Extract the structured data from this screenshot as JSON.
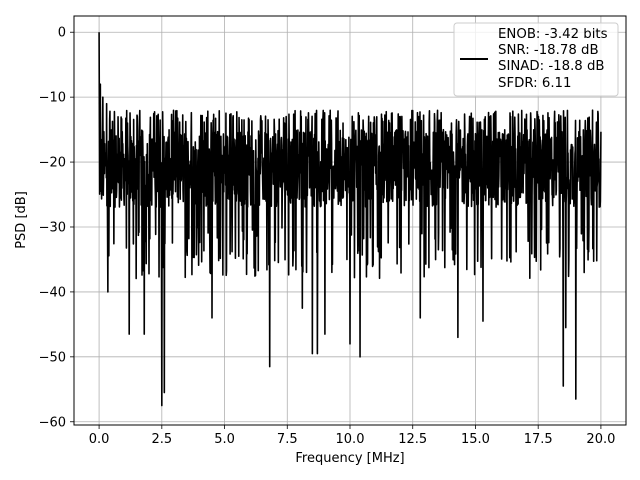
{
  "chart_data": {
    "type": "line",
    "title": "",
    "xlabel": "Frequency [MHz]",
    "ylabel": "PSD [dB]",
    "xlim": [
      -1.0,
      21.0
    ],
    "ylim": [
      -60.5,
      2.5
    ],
    "xticks": [
      0.0,
      2.5,
      5.0,
      7.5,
      10.0,
      12.5,
      15.0,
      17.5,
      20.0
    ],
    "xtick_labels": [
      "0.0",
      "2.5",
      "5.0",
      "7.5",
      "10.0",
      "12.5",
      "15.0",
      "17.5",
      "20.0"
    ],
    "yticks": [
      0,
      -10,
      -20,
      -30,
      -40,
      -50,
      -60
    ],
    "ytick_labels": [
      "0",
      "−10",
      "−20",
      "−30",
      "−40",
      "−50",
      "−60"
    ],
    "grid": true,
    "legend_position": "top-right",
    "series": [
      {
        "name": "ENOB: -3.42 bits\nSNR: -18.78 dB\nSINAD: -18.8 dB\nSFDR: 6.11",
        "legend_lines": [
          "ENOB: -3.42 bits",
          "SNR: -18.78 dB",
          "SINAD: -18.8 dB",
          "SFDR: 6.11"
        ],
        "color": "#000000",
        "baseline_db": -21,
        "peaks": [
          {
            "x": 0.0,
            "y": 0
          },
          {
            "x": 0.05,
            "y": -8
          },
          {
            "x": 0.15,
            "y": -10
          },
          {
            "x": 0.3,
            "y": -11
          }
        ],
        "dips": [
          {
            "x": 0.35,
            "y": -40
          },
          {
            "x": 1.2,
            "y": -46.5
          },
          {
            "x": 1.8,
            "y": -46.5
          },
          {
            "x": 2.5,
            "y": -57.5
          },
          {
            "x": 2.6,
            "y": -55.5
          },
          {
            "x": 4.5,
            "y": -44
          },
          {
            "x": 6.8,
            "y": -51.5
          },
          {
            "x": 8.1,
            "y": -42.5
          },
          {
            "x": 8.5,
            "y": -49.5
          },
          {
            "x": 8.7,
            "y": -49.5
          },
          {
            "x": 9.0,
            "y": -46.5
          },
          {
            "x": 10.0,
            "y": -48
          },
          {
            "x": 10.4,
            "y": -50
          },
          {
            "x": 12.8,
            "y": -44
          },
          {
            "x": 14.3,
            "y": -47
          },
          {
            "x": 15.3,
            "y": -44.5
          },
          {
            "x": 18.5,
            "y": -54.5
          },
          {
            "x": 18.6,
            "y": -45.5
          },
          {
            "x": 19.0,
            "y": -56.5
          }
        ]
      }
    ]
  }
}
